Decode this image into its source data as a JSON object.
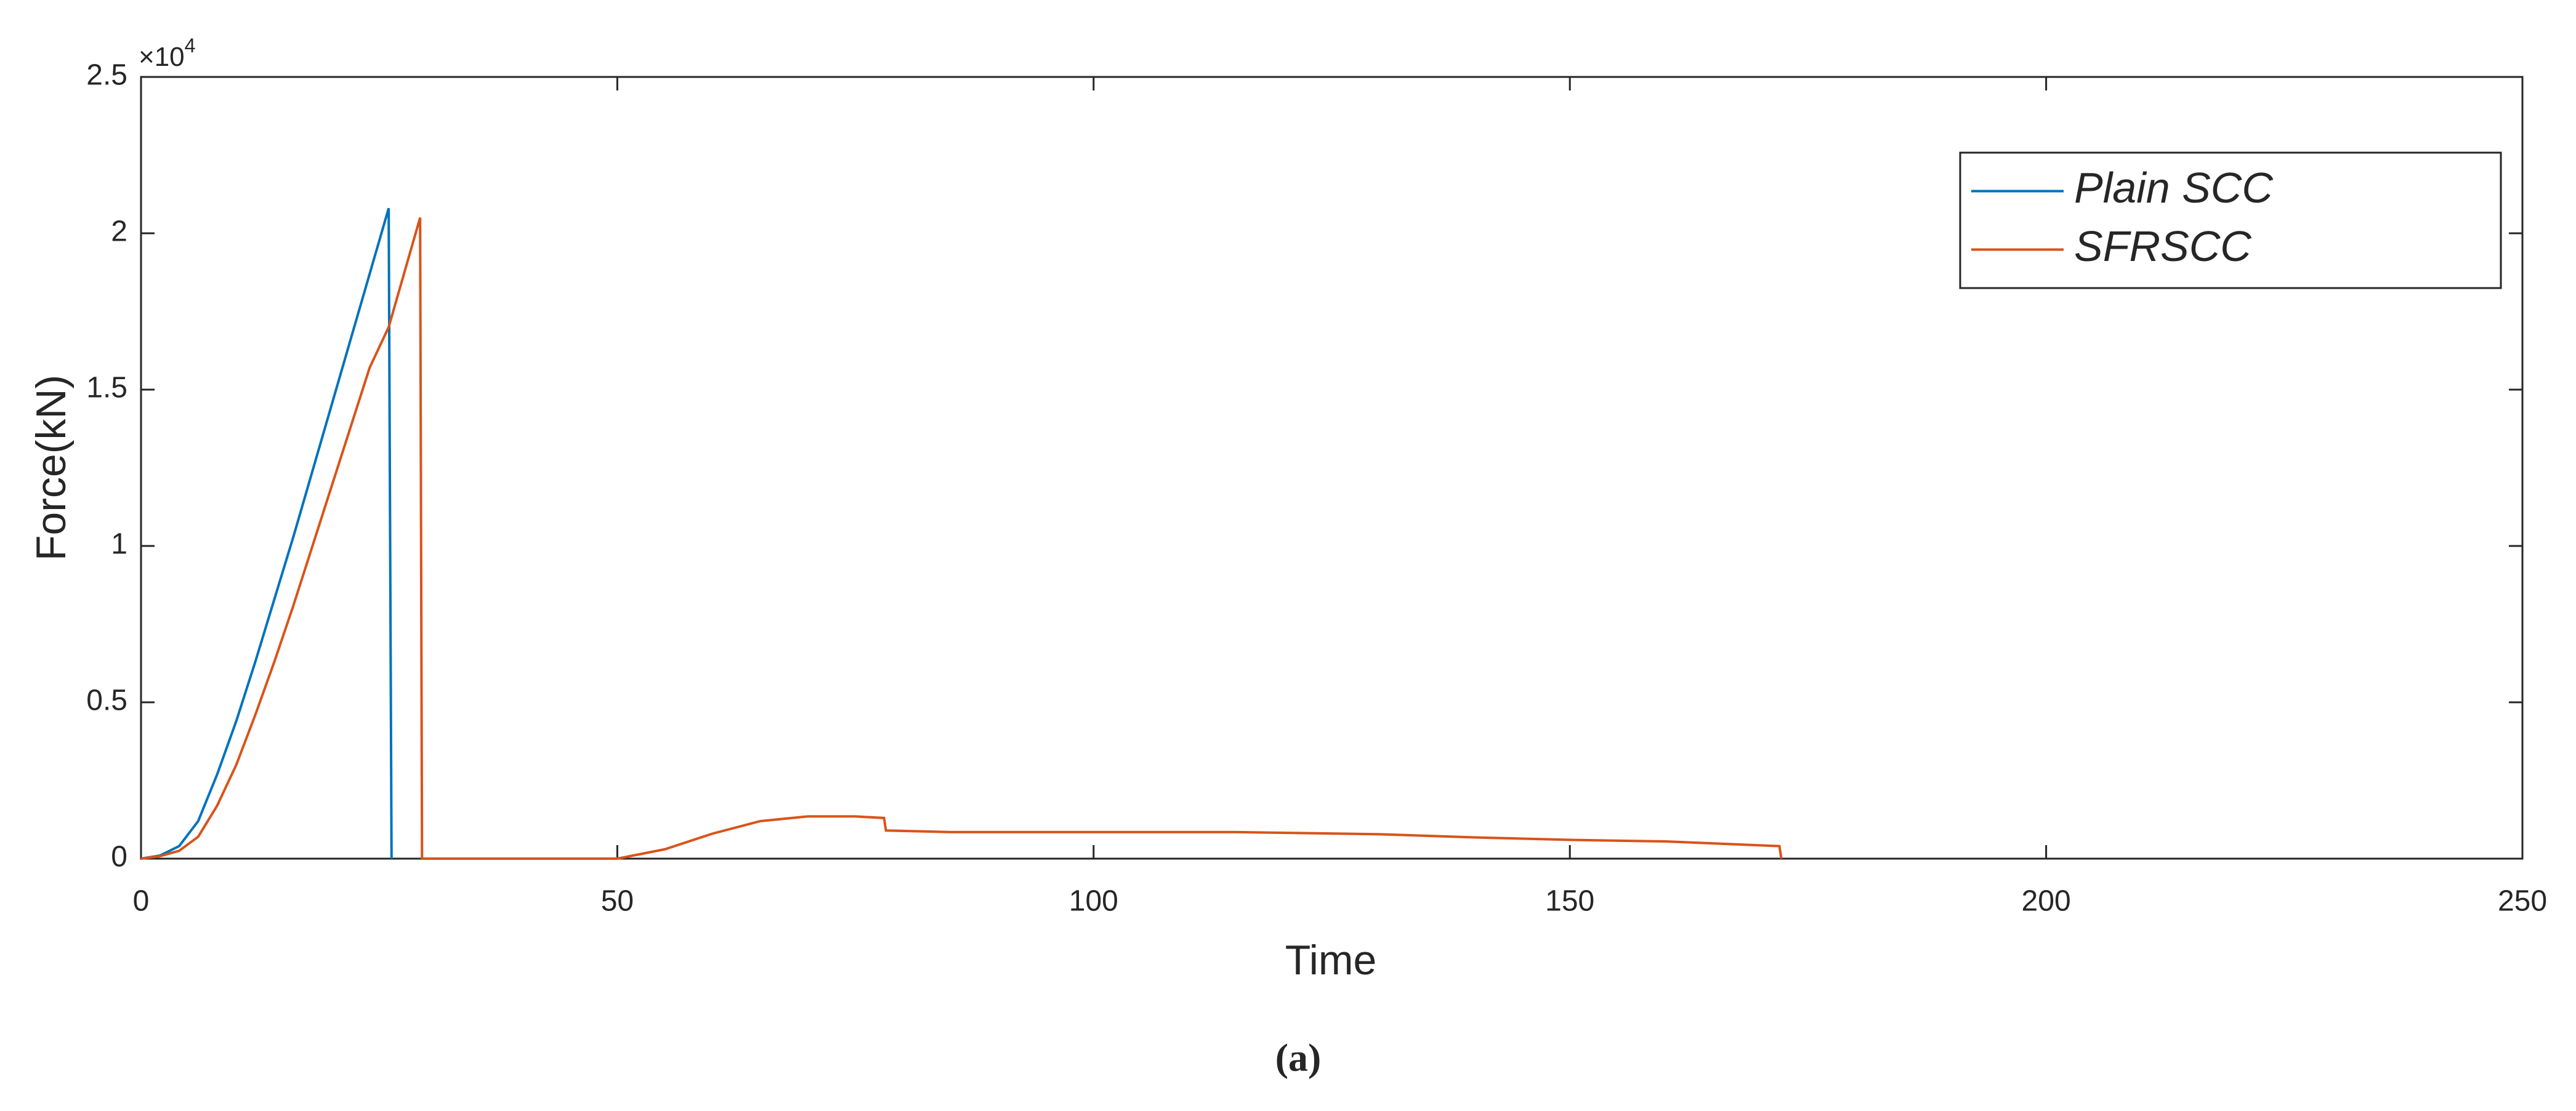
{
  "chart_data": {
    "type": "line",
    "x_label": "Time",
    "y_label": "Force(kN)",
    "y_multiplier": {
      "base": "×10",
      "exponent": "4"
    },
    "caption": "(a)",
    "xlim": [
      0,
      250
    ],
    "xticks": [
      0,
      50,
      100,
      150,
      200,
      250
    ],
    "ylim": [
      0,
      25000
    ],
    "yticks": [
      {
        "value": 0,
        "label": "0"
      },
      {
        "value": 5000,
        "label": "0.5"
      },
      {
        "value": 10000,
        "label": "1"
      },
      {
        "value": 15000,
        "label": "1.5"
      },
      {
        "value": 20000,
        "label": "2"
      },
      {
        "value": 25000,
        "label": "2.5"
      }
    ],
    "grid": false,
    "legend": "upper right",
    "series": [
      {
        "name": "Plain SCC",
        "color": "#0072bd",
        "x": [
          0,
          2,
          4,
          6,
          8,
          10,
          12,
          14,
          16,
          18,
          20,
          22,
          24,
          26,
          26.3
        ],
        "values": [
          0,
          100,
          400,
          1200,
          2700,
          4400,
          6300,
          8300,
          10300,
          12400,
          14500,
          16600,
          18700,
          20800,
          0
        ]
      },
      {
        "name": "SFRSCC",
        "color": "#d95319",
        "x": [
          0,
          2,
          4,
          6,
          8,
          10,
          12,
          14,
          16,
          18,
          20,
          22,
          24,
          26,
          29.3,
          29.5,
          50,
          55,
          60,
          65,
          70,
          75,
          78,
          78.2,
          85,
          100,
          115,
          130,
          140,
          150,
          160,
          172,
          172.2
        ],
        "values": [
          0,
          80,
          250,
          700,
          1700,
          3000,
          4600,
          6300,
          8100,
          10000,
          11900,
          13800,
          15700,
          17000,
          20500,
          0,
          0,
          300,
          800,
          1200,
          1350,
          1350,
          1300,
          900,
          850,
          850,
          850,
          780,
          680,
          600,
          550,
          400,
          0
        ]
      }
    ]
  }
}
